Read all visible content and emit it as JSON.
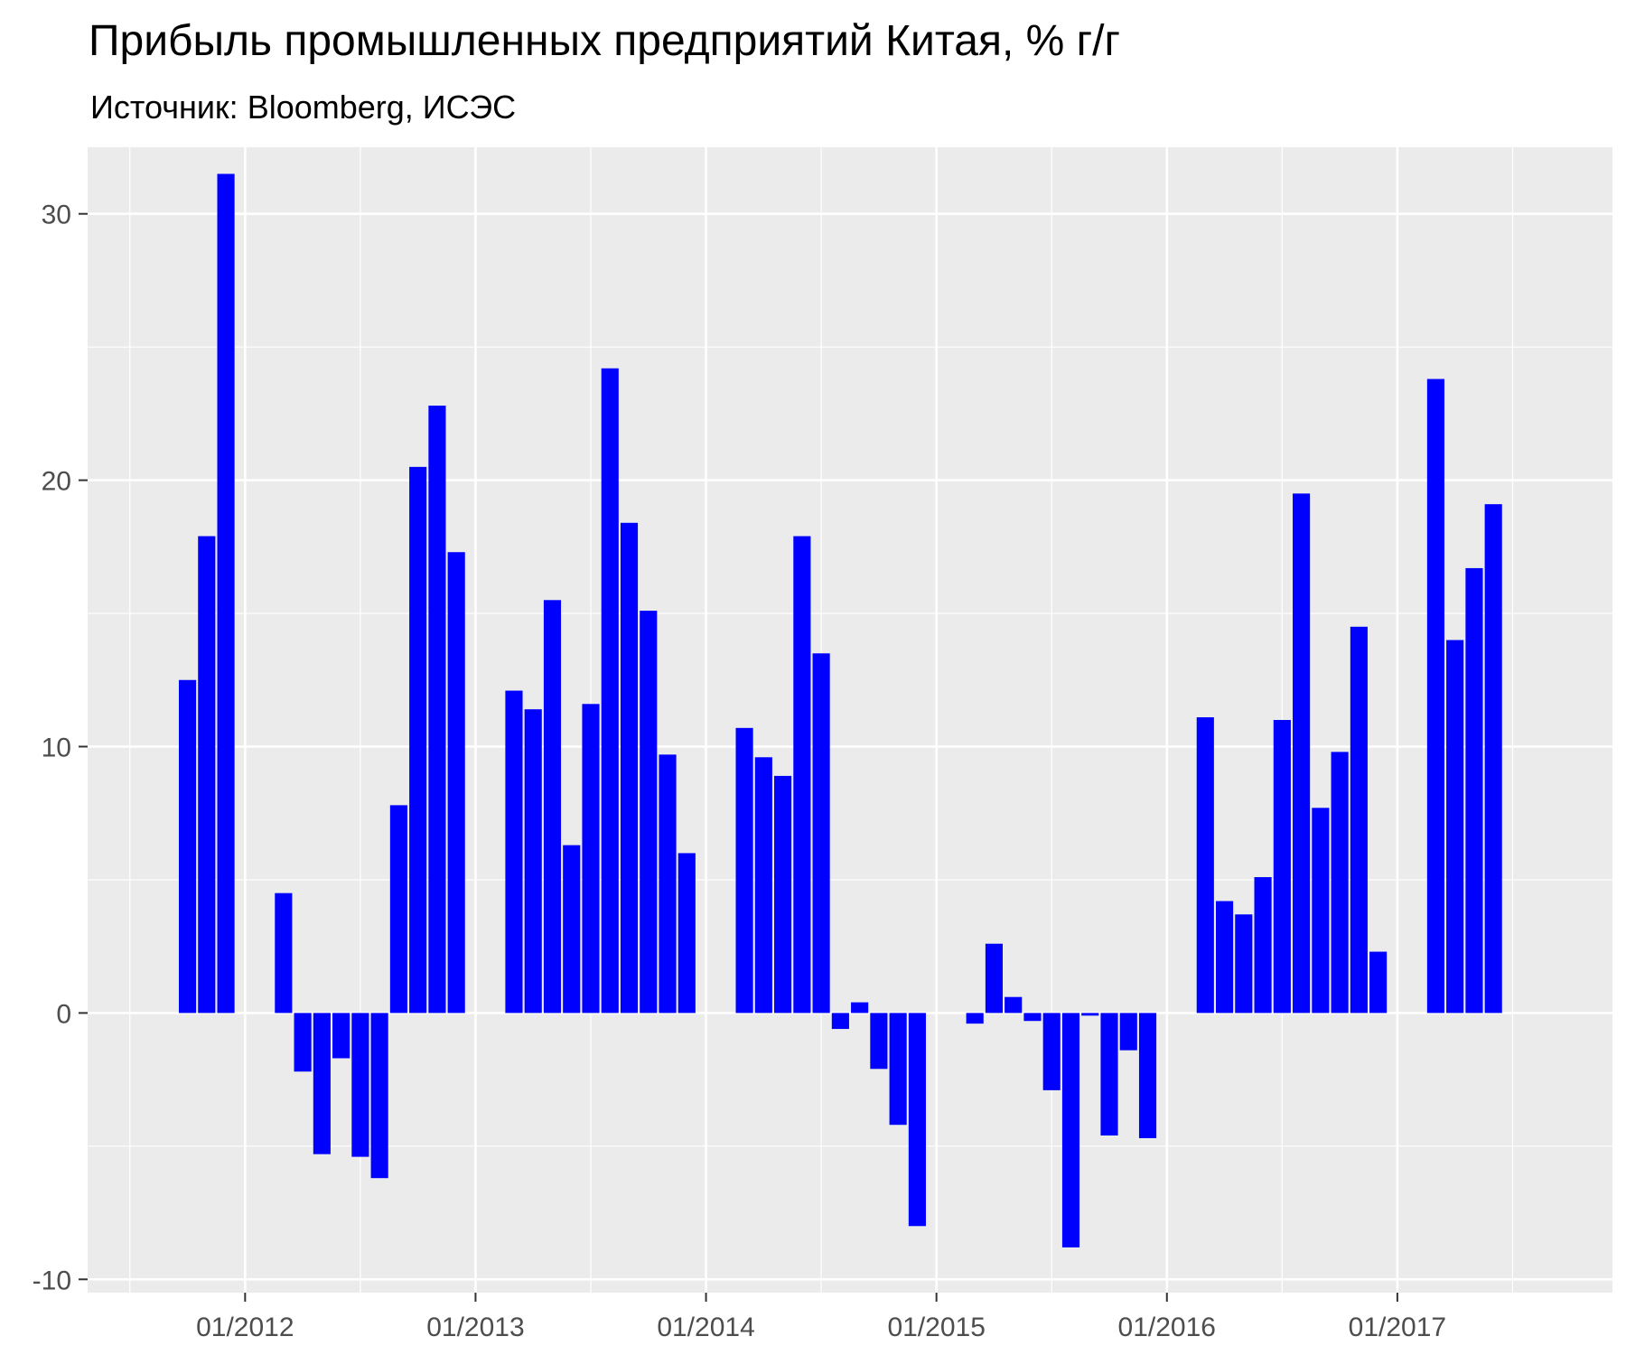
{
  "chart_data": {
    "type": "bar",
    "title": "Прибыль промышленных предприятий Китая, % г/г",
    "subtitle": "Источник: Bloomberg, ИСЭС",
    "xlabel": "",
    "ylabel": "",
    "ylim": [
      -10.5,
      32.5
    ],
    "yticks": [
      -10,
      0,
      10,
      20,
      30
    ],
    "ytick_labels": [
      "-10",
      "0",
      "10",
      "20",
      "30"
    ],
    "xticks": [
      "2012-01",
      "2013-01",
      "2014-01",
      "2015-01",
      "2016-01",
      "2017-01"
    ],
    "xtick_labels": [
      "01/2012",
      "01/2013",
      "01/2014",
      "01/2015",
      "01/2016",
      "01/2017"
    ],
    "grid": true,
    "bar_color": "#0000ff",
    "x": [
      "2011-10",
      "2011-11",
      "2011-12",
      "2012-03",
      "2012-04",
      "2012-05",
      "2012-06",
      "2012-07",
      "2012-08",
      "2012-09",
      "2012-10",
      "2012-11",
      "2012-12",
      "2013-03",
      "2013-04",
      "2013-05",
      "2013-06",
      "2013-07",
      "2013-08",
      "2013-09",
      "2013-10",
      "2013-11",
      "2013-12",
      "2014-03",
      "2014-04",
      "2014-05",
      "2014-06",
      "2014-07",
      "2014-08",
      "2014-09",
      "2014-10",
      "2014-11",
      "2014-12",
      "2015-03",
      "2015-04",
      "2015-05",
      "2015-06",
      "2015-07",
      "2015-08",
      "2015-09",
      "2015-10",
      "2015-11",
      "2015-12",
      "2016-03",
      "2016-04",
      "2016-05",
      "2016-06",
      "2016-07",
      "2016-08",
      "2016-09",
      "2016-10",
      "2016-11",
      "2016-12",
      "2017-03",
      "2017-04",
      "2017-05",
      "2017-06"
    ],
    "values": [
      12.5,
      17.9,
      31.5,
      4.5,
      -2.2,
      -5.3,
      -1.7,
      -5.4,
      -6.2,
      7.8,
      20.5,
      22.8,
      17.3,
      12.1,
      11.4,
      15.5,
      6.3,
      11.6,
      24.2,
      18.4,
      15.1,
      9.7,
      6.0,
      10.7,
      9.6,
      8.9,
      17.9,
      13.5,
      -0.6,
      0.4,
      -2.1,
      -4.2,
      -8.0,
      -0.4,
      2.6,
      0.6,
      -0.3,
      -2.9,
      -8.8,
      -0.1,
      -4.6,
      -1.4,
      -4.7,
      11.1,
      4.2,
      3.7,
      5.1,
      11.0,
      19.5,
      7.7,
      9.8,
      14.5,
      2.3,
      23.8,
      14.0,
      16.7,
      19.1
    ]
  }
}
